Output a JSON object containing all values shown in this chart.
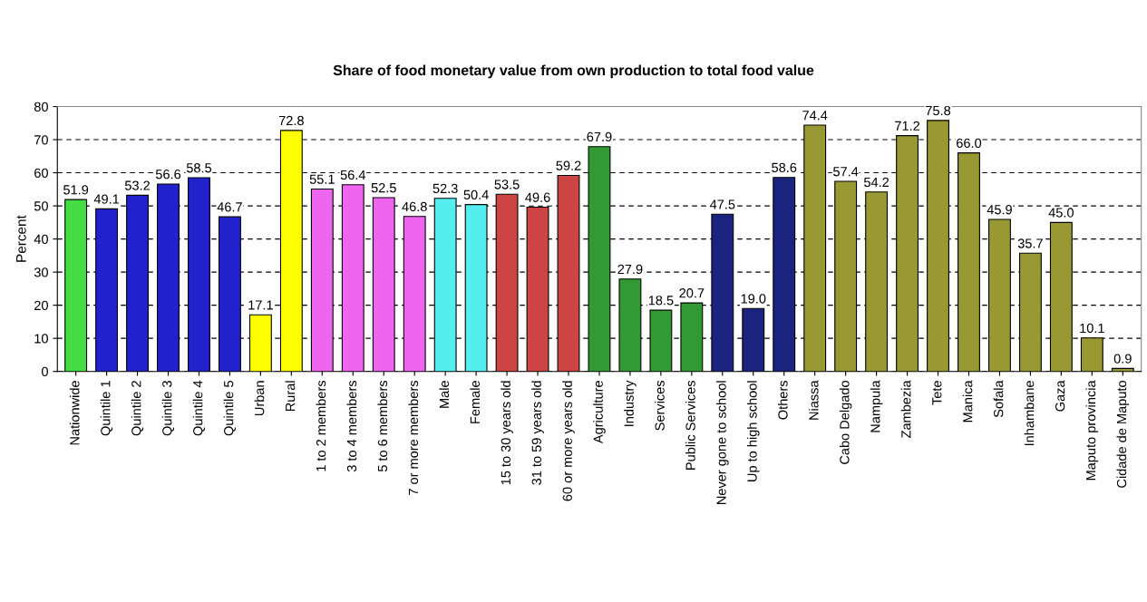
{
  "chart_data": {
    "type": "bar",
    "title": "Share of food monetary value from own production to total food value",
    "ylabel": "Percent",
    "categories": [
      "Nationwide",
      "Quintile 1",
      "Quintile 2",
      "Quintile 3",
      "Quintile 4",
      "Quintile 5",
      "Urban",
      "Rural",
      "1 to 2 members",
      "3 to 4 members",
      "5 to 6 members",
      "7 or more members",
      "Male",
      "Female",
      "15 to 30 years old",
      "31 to 59 years old",
      "60 or more years old",
      "Agriculture",
      "Industry",
      "Services",
      "Public Services",
      "Never gone to school",
      "Up to high school",
      "Others",
      "Niassa",
      "Cabo Delgado",
      "Nampula",
      "Zambezia",
      "Tete",
      "Manica",
      "Sofala",
      "Inhambane",
      "Gaza",
      "Maputo provincia",
      "Cidade de Maputo"
    ],
    "values": [
      51.9,
      49.1,
      53.2,
      56.6,
      58.5,
      46.7,
      17.1,
      72.8,
      55.1,
      56.4,
      52.5,
      46.8,
      52.3,
      50.4,
      53.5,
      49.6,
      59.2,
      67.9,
      27.9,
      18.5,
      20.7,
      47.5,
      19.0,
      58.6,
      74.4,
      57.4,
      54.2,
      71.2,
      75.8,
      66.0,
      45.9,
      35.7,
      45.0,
      10.1,
      0.9
    ],
    "value_labels": [
      "51.9",
      "49.1",
      "53.2",
      "56.6",
      "58.5",
      "46.7",
      "17.1",
      "72.8",
      "55.1",
      "56.4",
      "52.5",
      "46.8",
      "52.3",
      "50.4",
      "53.5",
      "49.6",
      "59.2",
      "67.9",
      "27.9",
      "18.5",
      "20.7",
      "47.5",
      "19.0",
      "58.6",
      "74.4",
      "57.4",
      "54.2",
      "71.2",
      "75.8",
      "66.0",
      "45.9",
      "35.7",
      "45.0",
      "10.1",
      "0.9"
    ],
    "colors": [
      "#44dd44",
      "#2222cc",
      "#2222cc",
      "#2222cc",
      "#2222cc",
      "#2222cc",
      "#ffff00",
      "#ffff00",
      "#ee66ee",
      "#ee66ee",
      "#ee66ee",
      "#ee66ee",
      "#55eeee",
      "#55eeee",
      "#cc4444",
      "#cc4444",
      "#cc4444",
      "#339933",
      "#339933",
      "#339933",
      "#339933",
      "#1a237e",
      "#1a237e",
      "#1a237e",
      "#999933",
      "#999933",
      "#999933",
      "#999933",
      "#999933",
      "#999933",
      "#999933",
      "#999933",
      "#999933",
      "#999933",
      "#999933"
    ],
    "ylim": [
      0,
      80
    ],
    "yticks": [
      0,
      10,
      20,
      30,
      40,
      50,
      60,
      70,
      80
    ],
    "grid": "y"
  }
}
